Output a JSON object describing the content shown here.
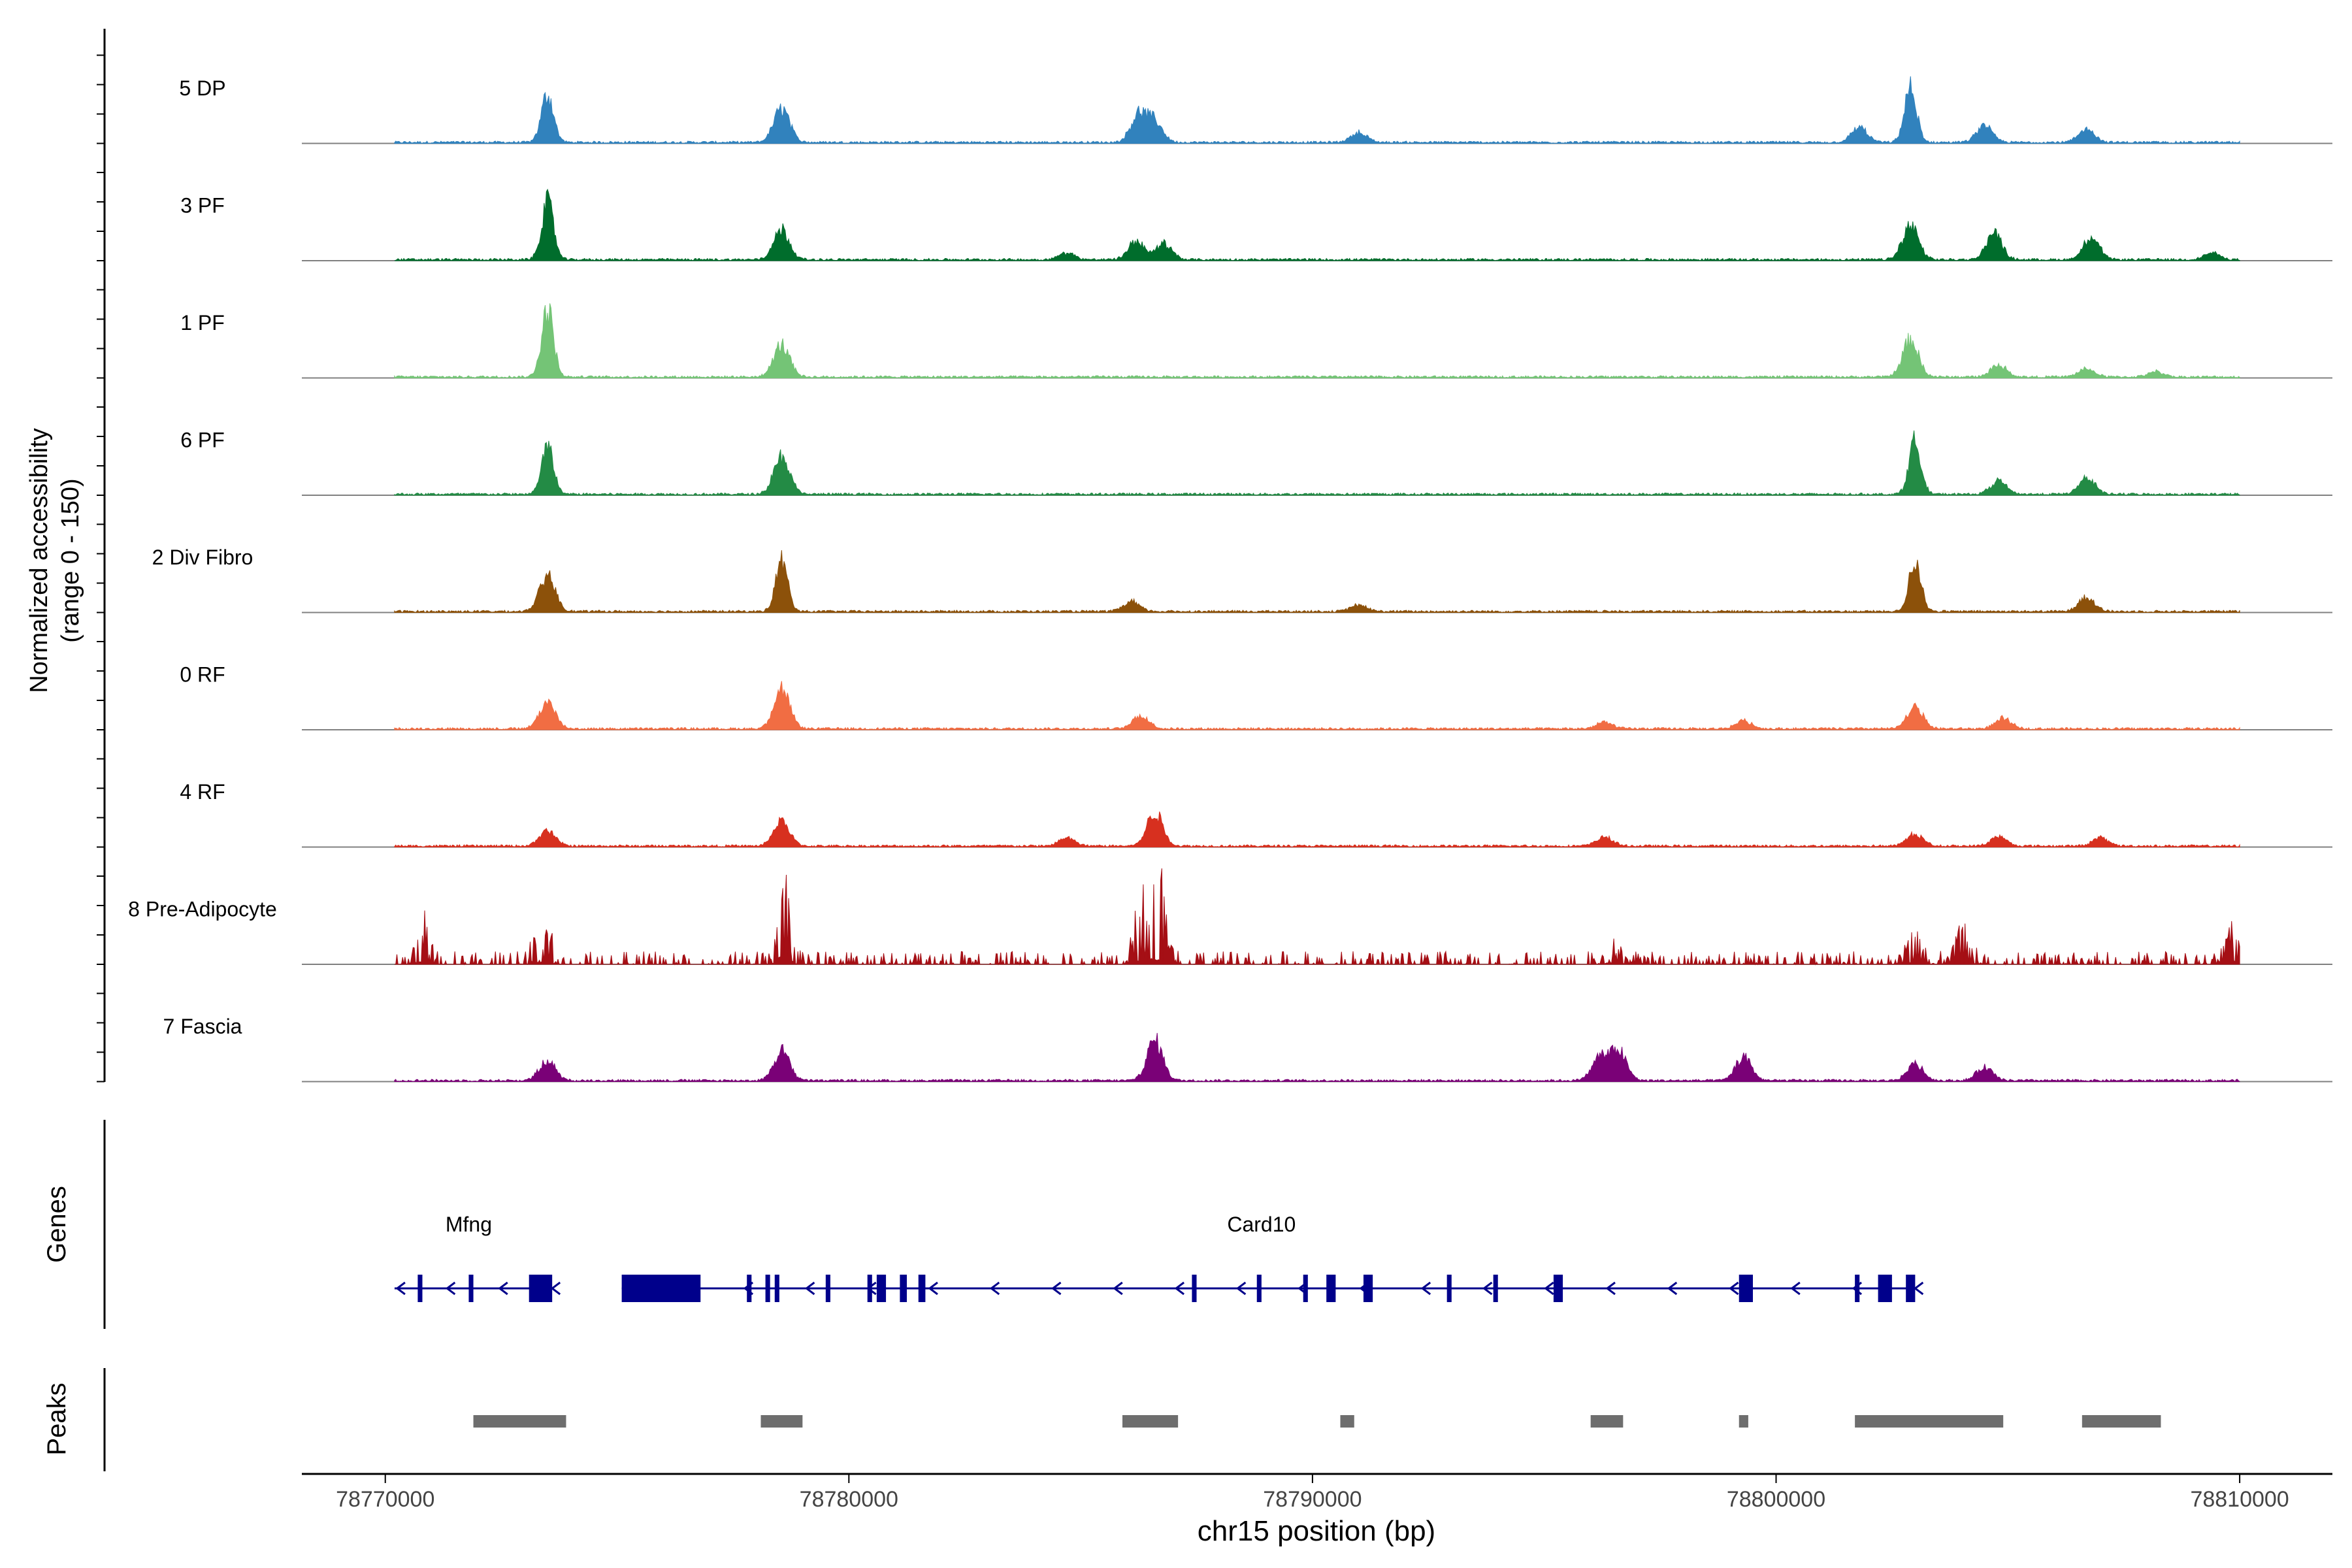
{
  "chart_data": {
    "type": "area",
    "title": "",
    "xlabel": "chr15 position (bp)",
    "ylabel": "Normalized accessibility",
    "ylabel_range": "(range 0 - 150)",
    "xlim": [
      78768200,
      78812000
    ],
    "x_ticks": [
      78770000,
      78780000,
      78790000,
      78800000,
      78810000
    ],
    "x_tick_labels": [
      "78770000",
      "78780000",
      "78790000",
      "78800000",
      "78810000"
    ],
    "track_range": [
      0,
      150
    ],
    "data_extent": [
      78770200,
      78810000
    ],
    "tracks": [
      {
        "name": "5 DP",
        "color": "#3182bd",
        "peaks": [
          [
            78773500,
            72
          ],
          [
            78778550,
            50
          ],
          [
            78786250,
            42
          ],
          [
            78786600,
            30
          ],
          [
            78791000,
            15
          ],
          [
            78801800,
            22
          ],
          [
            78802900,
            80
          ],
          [
            78804500,
            25
          ],
          [
            78806700,
            20
          ]
        ]
      },
      {
        "name": "3 PF",
        "color": "#006d2c",
        "peaks": [
          [
            78773500,
            85
          ],
          [
            78778550,
            45
          ],
          [
            78784700,
            10
          ],
          [
            78786200,
            28
          ],
          [
            78786800,
            24
          ],
          [
            78802900,
            50
          ],
          [
            78804700,
            40
          ],
          [
            78806800,
            35
          ],
          [
            78809400,
            10
          ]
        ]
      },
      {
        "name": "1 PF",
        "color": "#74c476",
        "peaks": [
          [
            78773500,
            100
          ],
          [
            78778550,
            48
          ],
          [
            78802900,
            55
          ],
          [
            78804800,
            18
          ],
          [
            78806700,
            12
          ],
          [
            78808200,
            8
          ]
        ]
      },
      {
        "name": "6 PF",
        "color": "#238b45",
        "peaks": [
          [
            78773500,
            70
          ],
          [
            78778550,
            58
          ],
          [
            78803000,
            78
          ],
          [
            78804800,
            20
          ],
          [
            78806700,
            25
          ]
        ]
      },
      {
        "name": "2 Div Fibro",
        "color": "#8c510a",
        "peaks": [
          [
            78773500,
            52
          ],
          [
            78778550,
            75
          ],
          [
            78786100,
            15
          ],
          [
            78791000,
            10
          ],
          [
            78803000,
            75
          ],
          [
            78806700,
            22
          ]
        ]
      },
      {
        "name": "0 RF",
        "color": "#f16d43",
        "peaks": [
          [
            78773500,
            40
          ],
          [
            78778550,
            60
          ],
          [
            78786300,
            20
          ],
          [
            78796300,
            10
          ],
          [
            78799300,
            12
          ],
          [
            78803000,
            32
          ],
          [
            78804900,
            15
          ]
        ]
      },
      {
        "name": "4 RF",
        "color": "#d7301f",
        "peaks": [
          [
            78773500,
            22
          ],
          [
            78778550,
            38
          ],
          [
            78784700,
            12
          ],
          [
            78786600,
            50
          ],
          [
            78796300,
            14
          ],
          [
            78803000,
            18
          ],
          [
            78804800,
            14
          ],
          [
            78807000,
            12
          ]
        ]
      },
      {
        "name": "8 Pre-Adipocyte",
        "color": "#a50f15",
        "peaks": [
          [
            78770800,
            65
          ],
          [
            78773400,
            55
          ],
          [
            78778600,
            120
          ],
          [
            78786300,
            90
          ],
          [
            78786700,
            120
          ],
          [
            78796500,
            30
          ],
          [
            78803000,
            35
          ],
          [
            78804000,
            45
          ],
          [
            78809900,
            50
          ]
        ]
      },
      {
        "name": "7 Fascia",
        "color": "#7a0177",
        "peaks": [
          [
            78773500,
            30
          ],
          [
            78778550,
            45
          ],
          [
            78786600,
            60
          ],
          [
            78796200,
            35
          ],
          [
            78796600,
            45
          ],
          [
            78799300,
            35
          ],
          [
            78803000,
            25
          ],
          [
            78804500,
            20
          ]
        ]
      }
    ],
    "genes": [
      {
        "name": "Mfng",
        "strand": "-",
        "start": 78770200,
        "end": 78773600,
        "exons": [
          [
            78770700,
            78770800
          ],
          [
            78771800,
            78771900
          ],
          [
            78773100,
            78773600
          ]
        ]
      },
      {
        "name": "Card10",
        "strand": "-",
        "start": 78775100,
        "end": 78803000,
        "exons": [
          [
            78775100,
            78776800
          ],
          [
            78777800,
            78777900
          ],
          [
            78778200,
            78778300
          ],
          [
            78778400,
            78778500
          ],
          [
            78779500,
            78779600
          ],
          [
            78780400,
            78780500
          ],
          [
            78780600,
            78780800
          ],
          [
            78781100,
            78781250
          ],
          [
            78781500,
            78781650
          ],
          [
            78787400,
            78787500
          ],
          [
            78788800,
            78788900
          ],
          [
            78789800,
            78789900
          ],
          [
            78790300,
            78790500
          ],
          [
            78791100,
            78791300
          ],
          [
            78792900,
            78793000
          ],
          [
            78793900,
            78794000
          ],
          [
            78795200,
            78795400
          ],
          [
            78799200,
            78799500
          ],
          [
            78801700,
            78801800
          ],
          [
            78802200,
            78802500
          ],
          [
            78802800,
            78803000
          ]
        ]
      }
    ],
    "peak_regions": [
      [
        78771900,
        78773900
      ],
      [
        78778100,
        78779000
      ],
      [
        78785900,
        78787100
      ],
      [
        78790600,
        78790900
      ],
      [
        78796000,
        78796700
      ],
      [
        78799200,
        78799400
      ],
      [
        78801700,
        78804900
      ],
      [
        78806600,
        78808300
      ]
    ],
    "row_labels": {
      "genes": "Genes",
      "peaks": "Peaks"
    },
    "colors": {
      "gene": "#00008b",
      "peak_region": "#6e6e6e",
      "baseline": "#808080",
      "axis": "#000000"
    }
  }
}
